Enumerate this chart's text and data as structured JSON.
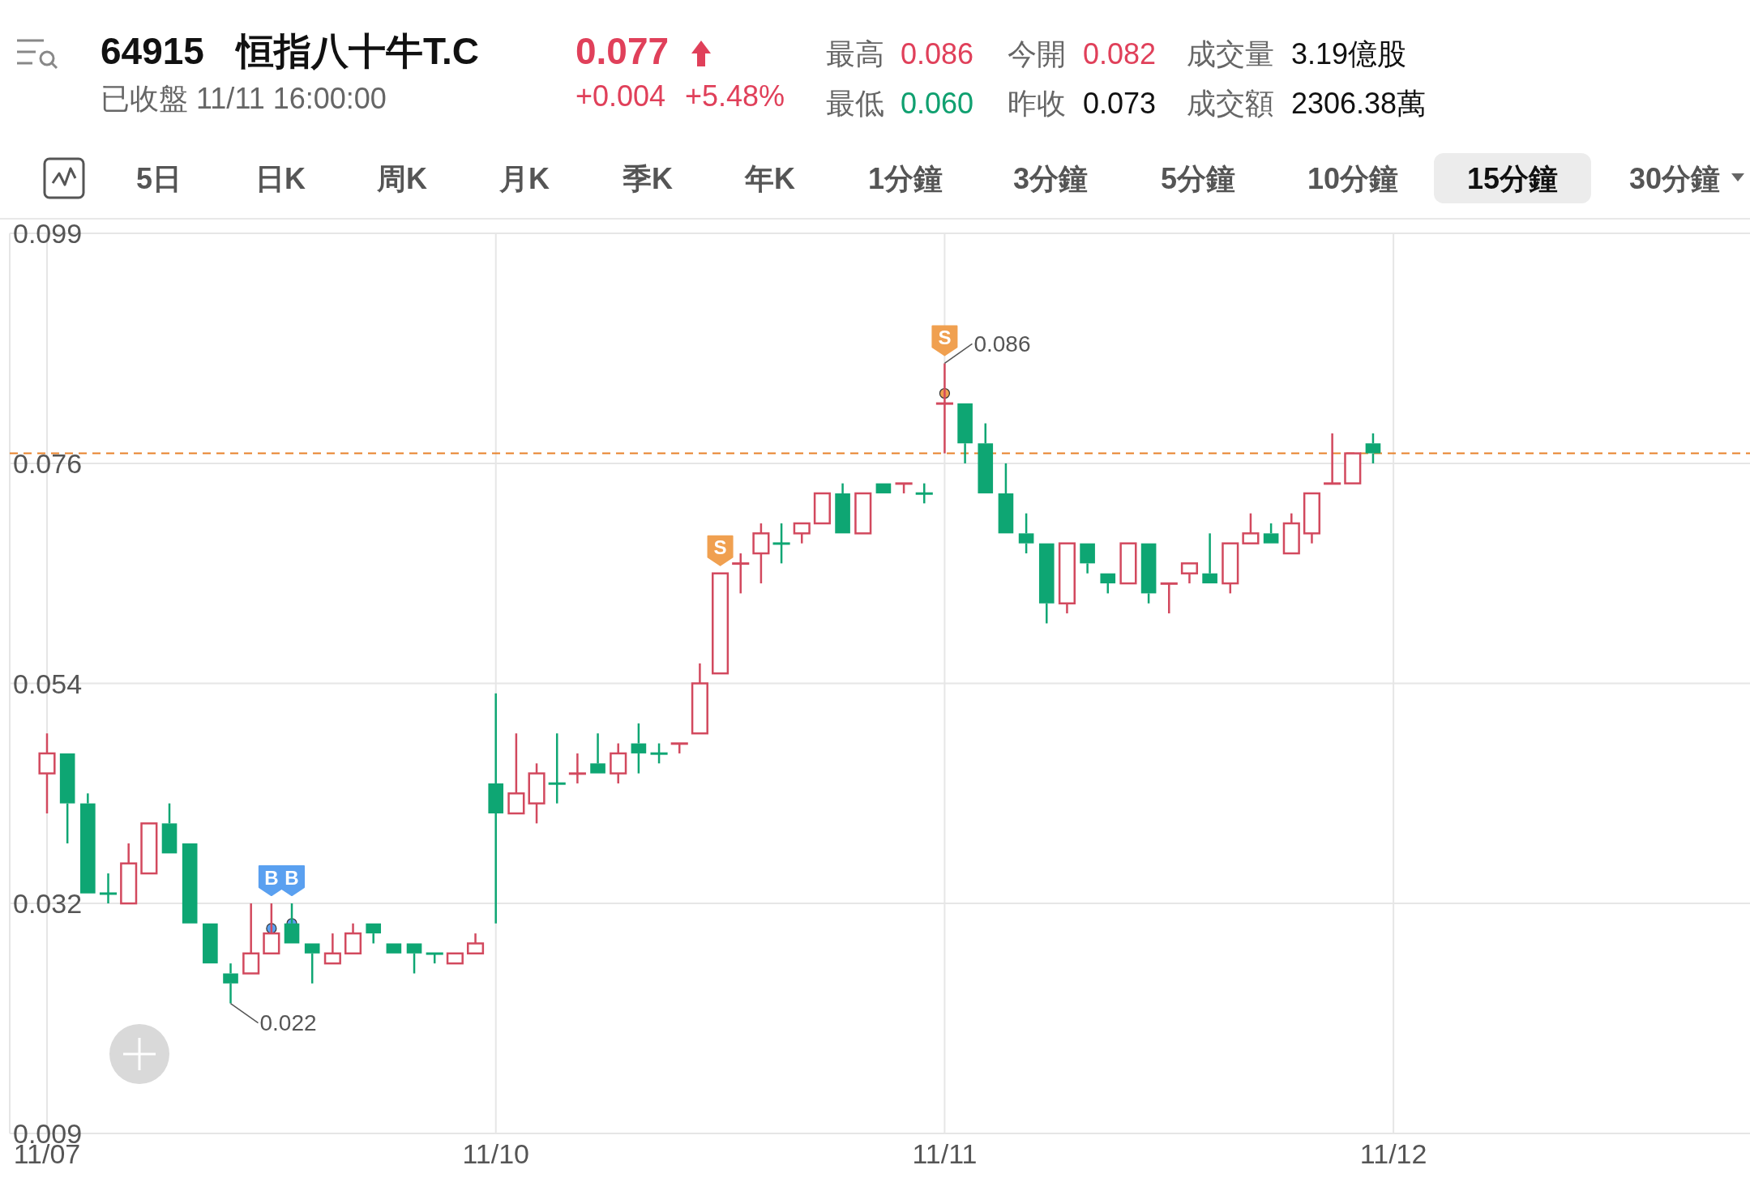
{
  "chart_data": {
    "type": "candlestick",
    "title": "恒指八十牛T.C",
    "annotations": [
      "64915",
      "0.077",
      "+0.004",
      "+5.48%",
      "已收盤 11/11 16:00:00",
      "最高",
      "0.086",
      "今開",
      "0.082",
      "成交量",
      "3.19億股",
      "最低",
      "0.060",
      "昨收",
      "0.073",
      "成交額",
      "2306.38萬",
      "5日",
      "日K",
      "周K",
      "月K",
      "季K",
      "年K",
      "1分鐘",
      "3分鐘",
      "5分鐘",
      "10分鐘",
      "15分鐘",
      "30分鐘",
      "0.086",
      "0.022",
      "B",
      "B",
      "S",
      {
        "text": "S",
        "y": 0.083
      }
    ],
    "categories": [
      "11/07",
      null,
      null,
      null,
      null,
      null,
      null,
      null,
      null,
      null,
      null,
      null,
      null,
      null,
      null,
      null,
      null,
      null,
      null,
      null,
      null,
      null,
      "11/10",
      null,
      null,
      null,
      null,
      null,
      null,
      null,
      null,
      null,
      null,
      null,
      null,
      null,
      null,
      null,
      null,
      null,
      null,
      null,
      null,
      null,
      "11/11",
      null,
      null,
      null,
      null,
      null,
      null,
      null,
      null,
      null,
      null,
      null,
      null,
      null,
      null,
      null,
      null,
      null,
      null,
      null,
      null,
      null,
      "11/12",
      null,
      null,
      null,
      null,
      null,
      null,
      null,
      null,
      null,
      null,
      null,
      null,
      null,
      null,
      null,
      null,
      null
    ],
    "ohlc": [
      [
        0.045,
        0.049,
        0.041,
        0.047
      ],
      [
        0.047,
        0.047,
        0.038,
        0.042
      ],
      [
        0.042,
        0.043,
        0.033,
        0.033
      ],
      [
        0.033,
        0.035,
        0.032,
        0.033
      ],
      [
        0.032,
        0.038,
        0.032,
        0.036
      ],
      [
        0.035,
        0.04,
        0.035,
        0.04
      ],
      [
        0.04,
        0.042,
        0.037,
        0.037
      ],
      [
        0.038,
        0.038,
        0.03,
        0.03
      ],
      [
        0.03,
        0.03,
        0.026,
        0.026
      ],
      [
        0.025,
        0.026,
        0.022,
        0.024
      ],
      [
        0.025,
        0.032,
        0.025,
        0.027
      ],
      [
        0.027,
        0.032,
        0.027,
        0.029
      ],
      [
        0.03,
        0.032,
        0.028,
        0.028
      ],
      [
        0.028,
        0.028,
        0.024,
        0.027
      ],
      [
        0.026,
        0.029,
        0.026,
        0.027
      ],
      [
        0.027,
        0.03,
        0.027,
        0.029
      ],
      [
        0.03,
        0.03,
        0.028,
        0.029
      ],
      [
        0.028,
        0.028,
        0.027,
        0.027
      ],
      [
        0.028,
        0.028,
        0.025,
        0.027
      ],
      [
        0.027,
        0.027,
        0.026,
        0.027
      ],
      [
        0.026,
        0.027,
        0.026,
        0.027
      ],
      [
        0.027,
        0.029,
        0.027,
        0.028
      ],
      [
        0.044,
        0.053,
        0.03,
        0.041
      ],
      [
        0.041,
        0.049,
        0.041,
        0.043
      ],
      [
        0.042,
        0.046,
        0.04,
        0.045
      ],
      [
        0.044,
        0.049,
        0.042,
        0.044
      ],
      [
        0.045,
        0.047,
        0.044,
        0.045
      ],
      [
        0.046,
        0.049,
        0.045,
        0.045
      ],
      [
        0.045,
        0.048,
        0.044,
        0.047
      ],
      [
        0.048,
        0.05,
        0.045,
        0.047
      ],
      [
        0.047,
        0.048,
        0.046,
        0.047
      ],
      [
        0.048,
        0.048,
        0.047,
        0.048
      ],
      [
        0.049,
        0.056,
        0.049,
        0.054
      ],
      [
        0.055,
        0.065,
        0.055,
        0.065
      ],
      [
        0.066,
        0.067,
        0.063,
        0.066
      ],
      [
        0.067,
        0.07,
        0.064,
        0.069
      ],
      [
        0.068,
        0.07,
        0.066,
        0.068
      ],
      [
        0.069,
        0.07,
        0.068,
        0.07
      ],
      [
        0.07,
        0.073,
        0.07,
        0.073
      ],
      [
        0.073,
        0.074,
        0.069,
        0.069
      ],
      [
        0.069,
        0.073,
        0.069,
        0.073
      ],
      [
        0.074,
        0.074,
        0.073,
        0.073
      ],
      [
        0.074,
        0.074,
        0.073,
        0.074
      ],
      [
        0.073,
        0.074,
        0.072,
        0.073
      ],
      [
        0.082,
        0.086,
        0.077,
        0.082
      ],
      [
        0.082,
        0.082,
        0.076,
        0.078
      ],
      [
        0.078,
        0.08,
        0.073,
        0.073
      ],
      [
        0.073,
        0.076,
        0.069,
        0.069
      ],
      [
        0.069,
        0.071,
        0.067,
        0.068
      ],
      [
        0.068,
        0.068,
        0.06,
        0.062
      ],
      [
        0.062,
        0.068,
        0.061,
        0.068
      ],
      [
        0.068,
        0.068,
        0.065,
        0.066
      ],
      [
        0.065,
        0.065,
        0.063,
        0.064
      ],
      [
        0.064,
        0.068,
        0.064,
        0.068
      ],
      [
        0.068,
        0.068,
        0.062,
        0.063
      ],
      [
        0.064,
        0.064,
        0.061,
        0.064
      ],
      [
        0.065,
        0.066,
        0.064,
        0.066
      ],
      [
        0.065,
        0.069,
        0.064,
        0.064
      ],
      [
        0.064,
        0.068,
        0.063,
        0.068
      ],
      [
        0.068,
        0.071,
        0.068,
        0.069
      ],
      [
        0.069,
        0.07,
        0.068,
        0.068
      ],
      [
        0.067,
        0.071,
        0.067,
        0.07
      ],
      [
        0.069,
        0.073,
        0.068,
        0.073
      ],
      [
        0.074,
        0.079,
        0.074,
        0.074
      ],
      [
        0.074,
        0.077,
        0.074,
        0.077
      ],
      [
        0.078,
        0.079,
        0.076,
        0.077
      ],
      null,
      null,
      null,
      null,
      null,
      null,
      null,
      null,
      null,
      null,
      null,
      null,
      null,
      null,
      null,
      null,
      null,
      null
    ],
    "colors": [
      "#d2495e",
      "#0ea673",
      "#0ea673",
      "#0ea673",
      "#d2495e",
      "#d2495e",
      "#0ea673",
      "#0ea673",
      "#0ea673",
      "#0ea673",
      "#d2495e",
      "#d2495e",
      "#0ea673",
      "#0ea673",
      "#d2495e",
      "#d2495e",
      "#0ea673",
      "#0ea673",
      "#0ea673",
      "#0ea673",
      "#d2495e",
      "#d2495e",
      "#0ea673",
      "#d2495e",
      "#d2495e",
      "#0ea673",
      "#d2495e",
      "#0ea673",
      "#d2495e",
      "#0ea673",
      "#0ea673",
      "#d2495e",
      "#d2495e",
      "#d2495e",
      "#d2495e",
      "#d2495e",
      "#0ea673",
      "#d2495e",
      "#d2495e",
      "#0ea673",
      "#d2495e",
      "#0ea673",
      "#d2495e",
      "#0ea673",
      "#d2495e",
      "#0ea673",
      "#0ea673",
      "#0ea673",
      "#0ea673",
      "#0ea673",
      "#d2495e",
      "#0ea673",
      "#0ea673",
      "#d2495e",
      "#0ea673",
      "#d2495e",
      "#d2495e",
      "#0ea673",
      "#d2495e",
      "#d2495e",
      "#0ea673",
      "#d2495e",
      "#d2495e",
      "#d2495e",
      "#d2495e",
      "#0ea673",
      null,
      null,
      null,
      null,
      null,
      null,
      null,
      null,
      null,
      null,
      null,
      null,
      null,
      null,
      null,
      null,
      null,
      null
    ],
    "ylim": [
      0.009,
      0.099
    ],
    "yticks": [
      0.099,
      0.076,
      0.054,
      0.032,
      0.009
    ],
    "ref_lines": [
      {
        "axis": "y",
        "value": 0.077,
        "color": "#e8822a",
        "line_style": "dashed"
      }
    ],
    "grid": true
  }
}
